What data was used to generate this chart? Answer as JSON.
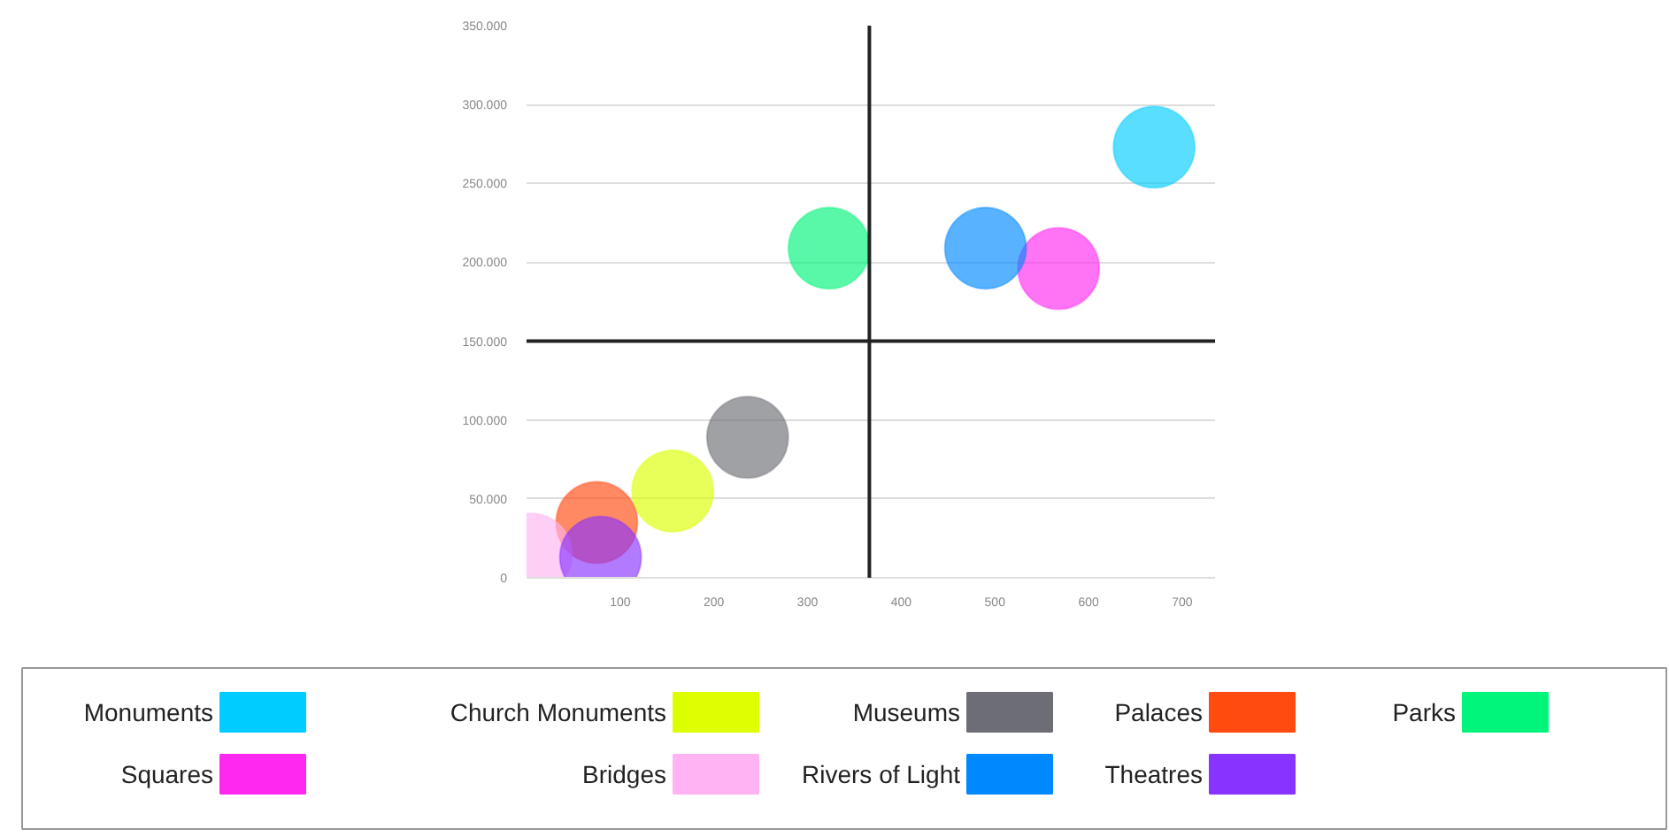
{
  "chart_data": {
    "type": "bubble",
    "series": [
      {
        "name": "Monuments",
        "color": "#00ccff",
        "x": [
          670
        ],
        "values": [
          273000
        ],
        "sizes": [
          1
        ]
      },
      {
        "name": "Church Monuments",
        "color": "#ddff00",
        "x": [
          156
        ],
        "values": [
          55000
        ],
        "sizes": [
          1
        ]
      },
      {
        "name": "Museums",
        "color": "#6d6e75",
        "x": [
          236
        ],
        "values": [
          89000
        ],
        "sizes": [
          1
        ]
      },
      {
        "name": "Palaces",
        "color": "#ff4a10",
        "x": [
          75
        ],
        "values": [
          35000
        ],
        "sizes": [
          1
        ]
      },
      {
        "name": "Parks",
        "color": "#00f57a",
        "x": [
          323
        ],
        "values": [
          209000
        ],
        "sizes": [
          1
        ]
      },
      {
        "name": "Squares",
        "color": "#ff28f0",
        "x": [
          568
        ],
        "values": [
          196000
        ],
        "sizes": [
          1
        ]
      },
      {
        "name": "Bridges",
        "color": "#ffb3f3",
        "x": [
          5
        ],
        "values": [
          15000
        ],
        "sizes": [
          1
        ]
      },
      {
        "name": "Rivers of Light",
        "color": "#0088ff",
        "x": [
          490
        ],
        "values": [
          209000
        ],
        "sizes": [
          1
        ]
      },
      {
        "name": "Theatres",
        "color": "#8833ff",
        "x": [
          79
        ],
        "values": [
          13000
        ],
        "sizes": [
          1
        ]
      }
    ],
    "xlim": [
      0,
      735
    ],
    "xticks": [
      100,
      200,
      300,
      400,
      500,
      600,
      700
    ],
    "ylim": [
      0,
      350000
    ],
    "yticks": [
      {
        "value": 0,
        "label": "0"
      },
      {
        "value": 50000,
        "label": "50.000"
      },
      {
        "value": 100000,
        "label": "100.000"
      },
      {
        "value": 150000,
        "label": "150.000"
      },
      {
        "value": 200000,
        "label": "200.000"
      },
      {
        "value": 250000,
        "label": "250.000"
      },
      {
        "value": 300000,
        "label": "300.000"
      },
      {
        "value": 350000,
        "label": "350.000"
      }
    ],
    "ref_lines": [
      {
        "axis": "x",
        "value": 366,
        "color": "#222222"
      },
      {
        "axis": "y",
        "value": 150000,
        "color": "#222222"
      }
    ],
    "grid": "y",
    "legend": "bottom"
  }
}
